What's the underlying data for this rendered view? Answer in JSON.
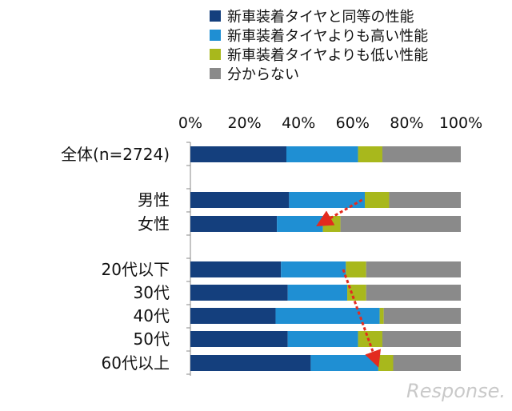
{
  "chart_data": {
    "type": "bar",
    "orientation": "horizontal",
    "stacked": true,
    "percent_axis": true,
    "xlim": [
      0,
      100
    ],
    "x_ticks": [
      "0%",
      "20%",
      "40%",
      "60%",
      "80%",
      "100%"
    ],
    "legend_position": "top",
    "categories": [
      "全体(n=2724)",
      "男性",
      "女性",
      "20代以下",
      "30代",
      "40代",
      "50代",
      "60代以上"
    ],
    "series": [
      {
        "name": "新車装着タイヤと同等の性能",
        "color": "#143f7d",
        "values": [
          35.5,
          36.5,
          32.0,
          33.5,
          36.0,
          31.5,
          36.0,
          44.5
        ]
      },
      {
        "name": "新車装着タイヤよりも高い性能",
        "color": "#1f8fd3",
        "values": [
          26.5,
          28.0,
          17.0,
          24.0,
          22.0,
          38.5,
          26.0,
          25.0
        ]
      },
      {
        "name": "新車装着タイヤよりも低い性能",
        "color": "#a8b81c",
        "values": [
          9.0,
          9.0,
          6.5,
          7.5,
          7.0,
          1.5,
          9.0,
          5.5
        ]
      },
      {
        "name": "分からない",
        "color": "#8a8a8a",
        "values": [
          29.0,
          26.5,
          44.5,
          35.0,
          35.0,
          28.5,
          29.0,
          25.0
        ]
      }
    ],
    "annotations": [
      {
        "type": "dashed-arrow",
        "color": "#e32b1f",
        "from_category": "男性",
        "from_x": 63.5,
        "to_category": "女性",
        "to_x": 48.0
      },
      {
        "type": "dashed-arrow",
        "color": "#e32b1f",
        "from_category": "20代以下",
        "from_x": 56.5,
        "to_category": "60代以上",
        "to_x": 69.0
      }
    ]
  },
  "watermark": "Response."
}
